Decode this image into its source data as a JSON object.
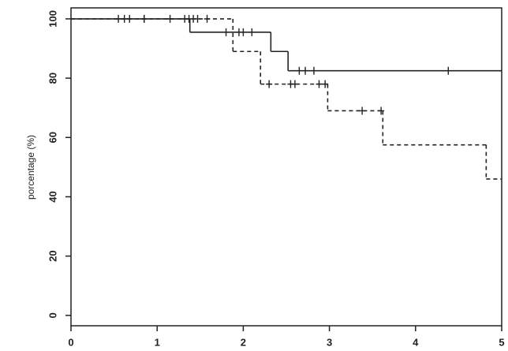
{
  "chart_data": {
    "type": "step",
    "y_label": "porcentage (%)",
    "xlim": [
      0,
      5
    ],
    "ylim": [
      -3.5,
      103.7
    ],
    "xticks": [
      0,
      1,
      2,
      3,
      4,
      5
    ],
    "yticks": [
      0,
      20,
      40,
      60,
      80,
      100
    ],
    "series": [
      {
        "style": "solid",
        "color": "#222222",
        "x": [
          0,
          1.38,
          2.32,
          2.52
        ],
        "values": [
          100,
          95.5,
          89,
          82.5
        ],
        "censored": {
          "x": [
            0.55,
            0.62,
            0.68,
            0.85,
            1.15,
            1.32,
            1.37,
            1.8,
            1.95,
            2.0,
            2.1,
            2.65,
            2.72,
            2.82,
            4.38
          ],
          "values": [
            100,
            100,
            100,
            100,
            100,
            100,
            100,
            95.5,
            95.5,
            95.5,
            95.5,
            82.5,
            82.5,
            82.5,
            82.5
          ]
        }
      },
      {
        "style": "dashed",
        "color": "#222222",
        "x": [
          0,
          1.88,
          2.2,
          2.98,
          3.62,
          4.82
        ],
        "values": [
          100,
          89,
          78,
          69,
          57.5,
          46
        ],
        "censored": {
          "x": [
            0.85,
            1.42,
            1.47,
            1.58,
            2.3,
            2.55,
            2.6,
            2.88,
            2.95,
            3.38,
            3.6
          ],
          "values": [
            100,
            100,
            100,
            100,
            78,
            78,
            78,
            78,
            78,
            69,
            69
          ]
        }
      }
    ]
  }
}
